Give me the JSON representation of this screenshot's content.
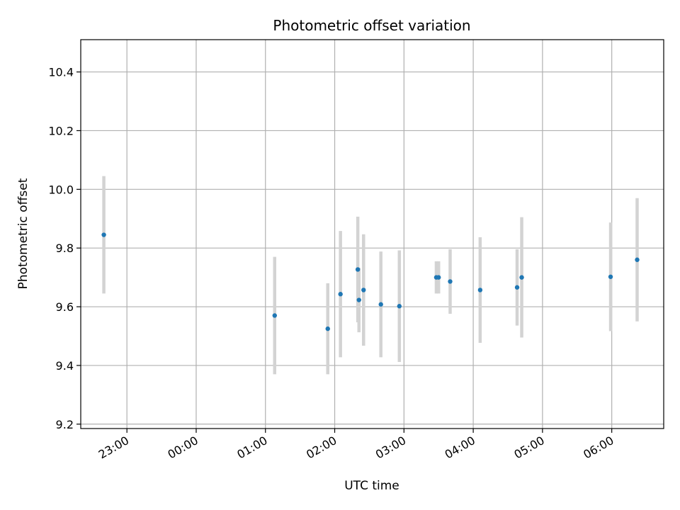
{
  "chart_data": {
    "type": "scatter",
    "title": "Photometric offset variation",
    "xlabel": "UTC time",
    "ylabel": "Photometric offset",
    "x_unit": "UTC hh:mm",
    "xlim": [
      "22:20",
      "06:45"
    ],
    "ylim": [
      9.185,
      10.51
    ],
    "grid": true,
    "xticks": [
      "23:00",
      "00:00",
      "01:00",
      "02:00",
      "03:00",
      "04:00",
      "05:00",
      "06:00"
    ],
    "yticks": [
      "9.2",
      "9.4",
      "9.6",
      "9.8",
      "10.0",
      "10.2",
      "10.4"
    ],
    "series": [
      {
        "marker_color": "#1f77b4",
        "errorbar_color": "#d3d3d3",
        "points": [
          {
            "x": "22:40",
            "y": 9.845,
            "err": 0.2
          },
          {
            "x": "01:08",
            "y": 9.57,
            "err": 0.2
          },
          {
            "x": "01:54",
            "y": 9.525,
            "err": 0.155
          },
          {
            "x": "02:05",
            "y": 9.643,
            "err": 0.215
          },
          {
            "x": "02:20",
            "y": 9.727,
            "err": 0.18
          },
          {
            "x": "02:21",
            "y": 9.623,
            "err": 0.11
          },
          {
            "x": "02:25",
            "y": 9.657,
            "err": 0.19
          },
          {
            "x": "02:40",
            "y": 9.608,
            "err": 0.18
          },
          {
            "x": "02:56",
            "y": 9.602,
            "err": 0.19
          },
          {
            "x": "03:28",
            "y": 9.7,
            "err": 0.055
          },
          {
            "x": "03:30",
            "y": 9.7,
            "err": 0.055
          },
          {
            "x": "03:40",
            "y": 9.686,
            "err": 0.11
          },
          {
            "x": "04:06",
            "y": 9.657,
            "err": 0.18
          },
          {
            "x": "04:38",
            "y": 9.666,
            "err": 0.13
          },
          {
            "x": "04:42",
            "y": 9.7,
            "err": 0.205
          },
          {
            "x": "05:59",
            "y": 9.702,
            "err": 0.185
          },
          {
            "x": "06:22",
            "y": 9.76,
            "err": 0.21
          }
        ]
      }
    ]
  }
}
